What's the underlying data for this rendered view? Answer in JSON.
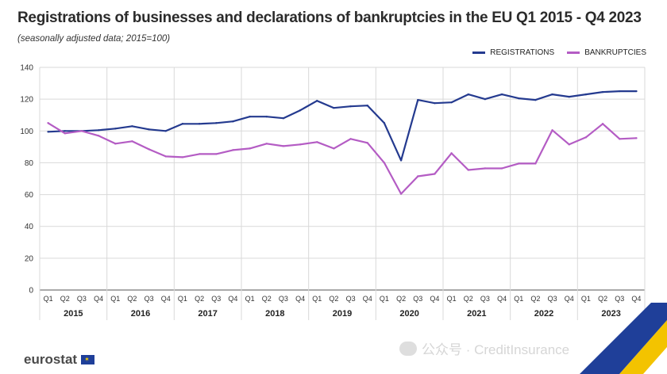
{
  "header": {
    "title": "Registrations of businesses and declarations of bankruptcies in the EU Q1 2015 - Q4 2023",
    "subtitle": "(seasonally adjusted data; 2015=100)"
  },
  "footer": {
    "logo_text": "eurostat",
    "watermark": "公众号 · CreditInsurance"
  },
  "colors": {
    "registrations": "#243a8f",
    "bankruptcies": "#b45cc4",
    "grid": "#d9d9d9",
    "axis": "#555555"
  },
  "chart_data": {
    "type": "line",
    "title": "Registrations of businesses and declarations of bankruptcies in the EU Q1 2015 - Q4 2023",
    "subtitle": "(seasonally adjusted data; 2015=100)",
    "ylim": [
      0,
      140
    ],
    "yticks": [
      0,
      20,
      40,
      60,
      80,
      100,
      120,
      140
    ],
    "grid": true,
    "legend_position": "top-right",
    "quarters": [
      "Q1",
      "Q2",
      "Q3",
      "Q4"
    ],
    "years": [
      "2015",
      "2016",
      "2017",
      "2018",
      "2019",
      "2020",
      "2021",
      "2022",
      "2023"
    ],
    "x": [
      "2015Q1",
      "2015Q2",
      "2015Q3",
      "2015Q4",
      "2016Q1",
      "2016Q2",
      "2016Q3",
      "2016Q4",
      "2017Q1",
      "2017Q2",
      "2017Q3",
      "2017Q4",
      "2018Q1",
      "2018Q2",
      "2018Q3",
      "2018Q4",
      "2019Q1",
      "2019Q2",
      "2019Q3",
      "2019Q4",
      "2020Q1",
      "2020Q2",
      "2020Q3",
      "2020Q4",
      "2021Q1",
      "2021Q2",
      "2021Q3",
      "2021Q4",
      "2022Q1",
      "2022Q2",
      "2022Q3",
      "2022Q4",
      "2023Q1",
      "2023Q2",
      "2023Q3",
      "2023Q4"
    ],
    "series": [
      {
        "name": "REGISTRATIONS",
        "color": "#243a8f",
        "values": [
          99.5,
          100,
          100,
          100.5,
          101.5,
          103,
          101,
          100,
          104.5,
          104.5,
          105,
          106,
          109,
          109,
          108,
          113,
          119,
          114.5,
          115.5,
          116,
          105,
          81.5,
          119.5,
          117.5,
          118,
          123,
          120,
          123,
          120.5,
          119.5,
          123,
          121.5,
          123,
          124.5,
          125,
          125
        ]
      },
      {
        "name": "BANKRUPTCIES",
        "color": "#b45cc4",
        "values": [
          105,
          98.5,
          100,
          97,
          92,
          93.5,
          88.5,
          84,
          83.5,
          85.5,
          85.5,
          88,
          89,
          92,
          90.5,
          91.5,
          93,
          89,
          95,
          92.5,
          80,
          60.5,
          71.5,
          73,
          86,
          75.5,
          76.5,
          76.5,
          79.5,
          79.5,
          100.5,
          91.5,
          96,
          104.5,
          95,
          95.5
        ]
      }
    ]
  }
}
